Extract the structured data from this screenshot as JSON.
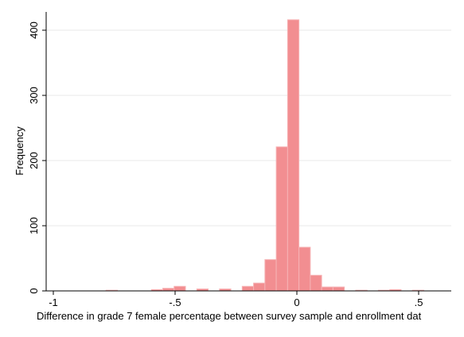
{
  "chart_data": {
    "type": "bar",
    "title": "",
    "xlabel": "Difference in grade 7 female percentage between survey sample and enrollment dat",
    "ylabel": "Frequency",
    "xlim": [
      -1.02,
      0.62
    ],
    "ylim": [
      0,
      430
    ],
    "x_ticks": [
      {
        "value": -1,
        "label": "-1"
      },
      {
        "value": -0.5,
        "label": "-.5"
      },
      {
        "value": 0,
        "label": "0"
      },
      {
        "value": 0.5,
        "label": ".5"
      }
    ],
    "y_ticks": [
      {
        "value": 0,
        "label": "0"
      },
      {
        "value": 100,
        "label": "100"
      },
      {
        "value": 200,
        "label": "200"
      },
      {
        "value": 300,
        "label": "300"
      },
      {
        "value": 400,
        "label": "400"
      }
    ],
    "grid": true,
    "bin_width": 0.0466,
    "bins": [
      {
        "x0": -0.97,
        "count": 0
      },
      {
        "x0": -0.9234,
        "count": 0
      },
      {
        "x0": -0.8768,
        "count": 0
      },
      {
        "x0": -0.8302,
        "count": 0
      },
      {
        "x0": -0.7836,
        "count": 1
      },
      {
        "x0": -0.737,
        "count": 0
      },
      {
        "x0": -0.6904,
        "count": 0
      },
      {
        "x0": -0.6438,
        "count": 0
      },
      {
        "x0": -0.5972,
        "count": 2
      },
      {
        "x0": -0.5506,
        "count": 4
      },
      {
        "x0": -0.504,
        "count": 7
      },
      {
        "x0": -0.4574,
        "count": 0
      },
      {
        "x0": -0.4108,
        "count": 3
      },
      {
        "x0": -0.3642,
        "count": 0
      },
      {
        "x0": -0.3176,
        "count": 3
      },
      {
        "x0": -0.271,
        "count": 0
      },
      {
        "x0": -0.2244,
        "count": 7
      },
      {
        "x0": -0.1778,
        "count": 12
      },
      {
        "x0": -0.1312,
        "count": 48
      },
      {
        "x0": -0.0846,
        "count": 221
      },
      {
        "x0": -0.038,
        "count": 416
      },
      {
        "x0": 0.0086,
        "count": 67
      },
      {
        "x0": 0.0552,
        "count": 24
      },
      {
        "x0": 0.1018,
        "count": 6
      },
      {
        "x0": 0.1484,
        "count": 6
      },
      {
        "x0": 0.195,
        "count": 0
      },
      {
        "x0": 0.2416,
        "count": 1
      },
      {
        "x0": 0.2882,
        "count": 0
      },
      {
        "x0": 0.3348,
        "count": 1
      },
      {
        "x0": 0.3814,
        "count": 2
      },
      {
        "x0": 0.428,
        "count": 0
      },
      {
        "x0": 0.4746,
        "count": 1
      },
      {
        "x0": 0.5212,
        "count": 0
      }
    ],
    "colors": {
      "bar_fill": "#f28e91",
      "bar_edge": "#f6b3b5"
    }
  }
}
